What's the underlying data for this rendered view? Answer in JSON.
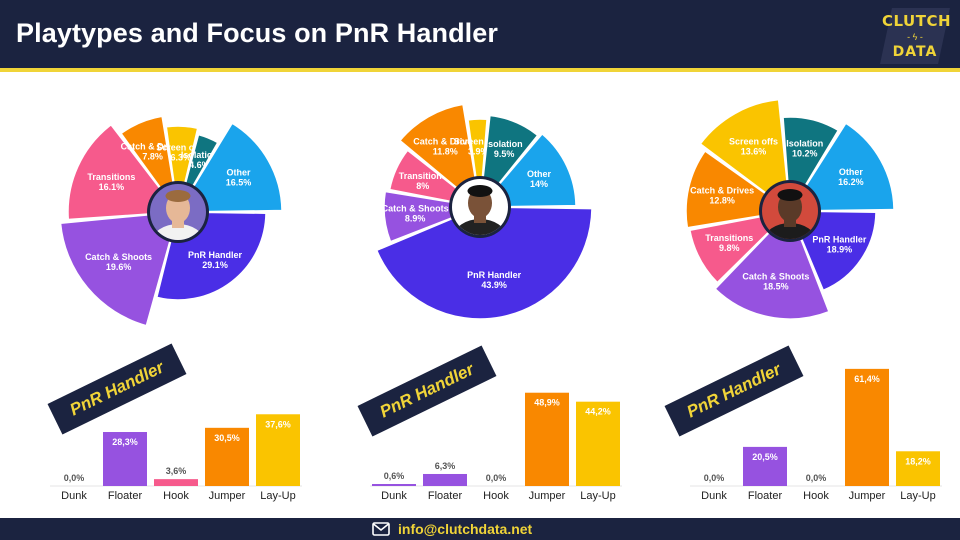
{
  "header": {
    "title": "Playtypes and Focus on PnR Handler"
  },
  "logo": {
    "line1": "CLUTCH",
    "line2": "- ϟ -",
    "line3": "DATA",
    "icon": "lightning-icon"
  },
  "footer": {
    "email": "info@clutchdata.net",
    "icon": "mail-icon"
  },
  "colors": {
    "pnr_handler": "#4a2ee6",
    "catch_shoots": "#9652e0",
    "transitions": "#f65a8c",
    "catch_drives": "#f98800",
    "screen_offs": "#fac400",
    "isolation": "#0f7580",
    "other": "#1aa4ec",
    "navy": "#1b2340",
    "yellow": "#f0d438"
  },
  "chart_data": [
    {
      "type": "pie",
      "slices": [
        {
          "label": "PnR Handler",
          "value": 29.1,
          "display": "29.1%",
          "color": "#4a2ee6"
        },
        {
          "label": "Catch & Shoots",
          "value": 19.6,
          "display": "19.6%",
          "color": "#9652e0"
        },
        {
          "label": "Transitions",
          "value": 16.1,
          "display": "16.1%",
          "color": "#f65a8c"
        },
        {
          "label": "Catch & Drives",
          "value": 7.8,
          "display": "7.8%",
          "color": "#f98800"
        },
        {
          "label": "Screen offs",
          "value": 6.3,
          "display": "6.3%",
          "color": "#fac400"
        },
        {
          "label": "Isolation",
          "value": 4.6,
          "display": "4.6%",
          "color": "#0f7580"
        },
        {
          "label": "Other",
          "value": 16.5,
          "display": "16.5%",
          "color": "#1aa4ec"
        }
      ]
    },
    {
      "type": "pie",
      "slices": [
        {
          "label": "PnR Handler",
          "value": 43.9,
          "display": "43.9%",
          "color": "#4a2ee6"
        },
        {
          "label": "Catch & Shoots",
          "value": 8.9,
          "display": "8.9%",
          "color": "#9652e0"
        },
        {
          "label": "Transitions",
          "value": 8.0,
          "display": "8%",
          "color": "#f65a8c"
        },
        {
          "label": "Catch & Drives",
          "value": 11.8,
          "display": "11.8%",
          "color": "#f98800"
        },
        {
          "label": "Screen offs",
          "value": 3.9,
          "display": "3.9%",
          "color": "#fac400"
        },
        {
          "label": "Isolation",
          "value": 9.5,
          "display": "9.5%",
          "color": "#0f7580"
        },
        {
          "label": "Other",
          "value": 14.0,
          "display": "14%",
          "color": "#1aa4ec"
        }
      ]
    },
    {
      "type": "pie",
      "slices": [
        {
          "label": "PnR Handler",
          "value": 18.9,
          "display": "18.9%",
          "color": "#4a2ee6"
        },
        {
          "label": "Catch & Shoots",
          "value": 18.5,
          "display": "18.5%",
          "color": "#9652e0"
        },
        {
          "label": "Transitions",
          "value": 9.8,
          "display": "9.8%",
          "color": "#f65a8c"
        },
        {
          "label": "Catch & Drives",
          "value": 12.8,
          "display": "12.8%",
          "color": "#f98800"
        },
        {
          "label": "Screen offs",
          "value": 13.6,
          "display": "13.6%",
          "color": "#fac400"
        },
        {
          "label": "Isolation",
          "value": 10.2,
          "display": "10.2%",
          "color": "#0f7580"
        },
        {
          "label": "Other",
          "value": 16.2,
          "display": "16.2%",
          "color": "#1aa4ec"
        }
      ]
    },
    {
      "type": "bar",
      "title": "PnR Handler",
      "categories": [
        "Dunk",
        "Floater",
        "Hook",
        "Jumper",
        "Lay-Up"
      ],
      "values": [
        0.0,
        28.3,
        3.6,
        30.5,
        37.6
      ],
      "labels": [
        "0,0%",
        "28,3%",
        "3,6%",
        "30,5%",
        "37,6%"
      ],
      "colors": [
        "#9652e0",
        "#9652e0",
        "#f65a8c",
        "#f98800",
        "#fac400"
      ]
    },
    {
      "type": "bar",
      "title": "PnR Handler",
      "categories": [
        "Dunk",
        "Floater",
        "Hook",
        "Jumper",
        "Lay-Up"
      ],
      "values": [
        0.6,
        6.3,
        0.0,
        48.9,
        44.2
      ],
      "labels": [
        "0,6%",
        "6,3%",
        "0,0%",
        "48,9%",
        "44,2%"
      ],
      "colors": [
        "#9652e0",
        "#9652e0",
        "#f65a8c",
        "#f98800",
        "#fac400"
      ]
    },
    {
      "type": "bar",
      "title": "PnR Handler",
      "categories": [
        "Dunk",
        "Floater",
        "Hook",
        "Jumper",
        "Lay-Up"
      ],
      "values": [
        0.0,
        20.5,
        0.0,
        61.4,
        18.2
      ],
      "labels": [
        "0,0%",
        "20,5%",
        "0,0%",
        "61,4%",
        "18,2%"
      ],
      "colors": [
        "#9652e0",
        "#9652e0",
        "#f65a8c",
        "#f98800",
        "#fac400"
      ]
    }
  ]
}
